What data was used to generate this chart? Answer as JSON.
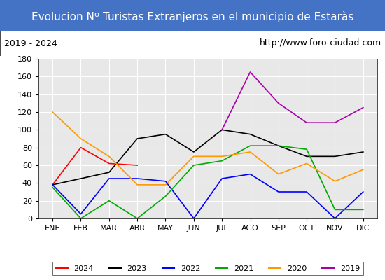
{
  "title": "Evolucion Nº Turistas Extranjeros en el municipio de Estaràs",
  "subtitle_left": "2019 - 2024",
  "subtitle_right": "http://www.foro-ciudad.com",
  "title_bg_color": "#4472c4",
  "title_text_color": "#ffffff",
  "subtitle_bg_color": "#ffffff",
  "subtitle_text_color": "#000000",
  "plot_bg_color": "#e8e8e8",
  "months": [
    "ENE",
    "FEB",
    "MAR",
    "ABR",
    "MAY",
    "JUN",
    "JUL",
    "AGO",
    "SEP",
    "OCT",
    "NOV",
    "DIC"
  ],
  "ylim": [
    0,
    180
  ],
  "yticks": [
    0,
    20,
    40,
    60,
    80,
    100,
    120,
    140,
    160,
    180
  ],
  "series": {
    "2024": {
      "color": "#ff0000",
      "values": [
        38,
        80,
        62,
        60,
        null,
        null,
        null,
        null,
        null,
        null,
        null,
        null
      ]
    },
    "2023": {
      "color": "#000000",
      "values": [
        38,
        45,
        52,
        90,
        95,
        75,
        100,
        95,
        82,
        70,
        70,
        75
      ]
    },
    "2022": {
      "color": "#0000ff",
      "values": [
        38,
        5,
        45,
        45,
        42,
        0,
        45,
        50,
        30,
        30,
        0,
        30
      ]
    },
    "2021": {
      "color": "#00aa00",
      "values": [
        35,
        0,
        20,
        0,
        25,
        60,
        65,
        82,
        82,
        78,
        10,
        10
      ]
    },
    "2020": {
      "color": "#ff9900",
      "values": [
        120,
        90,
        70,
        38,
        38,
        70,
        70,
        75,
        50,
        62,
        42,
        55
      ]
    },
    "2019": {
      "color": "#aa00aa",
      "values": [
        null,
        null,
        null,
        null,
        null,
        null,
        100,
        165,
        130,
        108,
        108,
        125
      ]
    }
  },
  "legend_order": [
    "2024",
    "2023",
    "2022",
    "2021",
    "2020",
    "2019"
  ]
}
